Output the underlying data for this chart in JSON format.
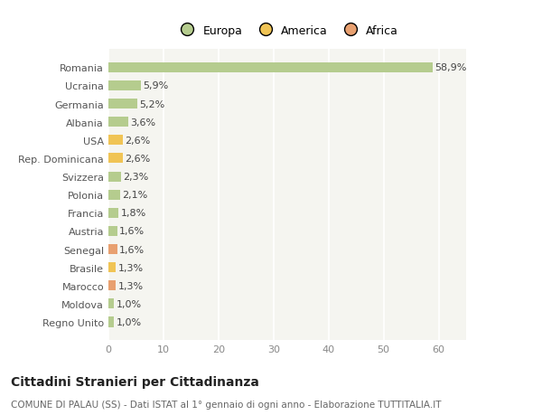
{
  "categories": [
    "Romania",
    "Ucraina",
    "Germania",
    "Albania",
    "USA",
    "Rep. Dominicana",
    "Svizzera",
    "Polonia",
    "Francia",
    "Austria",
    "Senegal",
    "Brasile",
    "Marocco",
    "Moldova",
    "Regno Unito"
  ],
  "values": [
    58.9,
    5.9,
    5.2,
    3.6,
    2.6,
    2.6,
    2.3,
    2.1,
    1.8,
    1.6,
    1.6,
    1.3,
    1.3,
    1.0,
    1.0
  ],
  "labels": [
    "58,9%",
    "5,9%",
    "5,2%",
    "3,6%",
    "2,6%",
    "2,6%",
    "2,3%",
    "2,1%",
    "1,8%",
    "1,6%",
    "1,6%",
    "1,3%",
    "1,3%",
    "1,0%",
    "1,0%"
  ],
  "colors": [
    "#b5cc8e",
    "#b5cc8e",
    "#b5cc8e",
    "#b5cc8e",
    "#f0c455",
    "#f0c455",
    "#b5cc8e",
    "#b5cc8e",
    "#b5cc8e",
    "#b5cc8e",
    "#e8a070",
    "#f0c455",
    "#e8a070",
    "#b5cc8e",
    "#b5cc8e"
  ],
  "legend_labels": [
    "Europa",
    "America",
    "Africa"
  ],
  "legend_colors": [
    "#b5cc8e",
    "#f0c455",
    "#e8a070"
  ],
  "xlim": [
    0,
    65
  ],
  "xticks": [
    0,
    10,
    20,
    30,
    40,
    50,
    60
  ],
  "title": "Cittadini Stranieri per Cittadinanza",
  "subtitle": "COMUNE DI PALAU (SS) - Dati ISTAT al 1° gennaio di ogni anno - Elaborazione TUTTITALIA.IT",
  "bg_color": "#ffffff",
  "plot_bg_color": "#f5f5f0",
  "grid_color": "#ffffff",
  "bar_height": 0.55
}
